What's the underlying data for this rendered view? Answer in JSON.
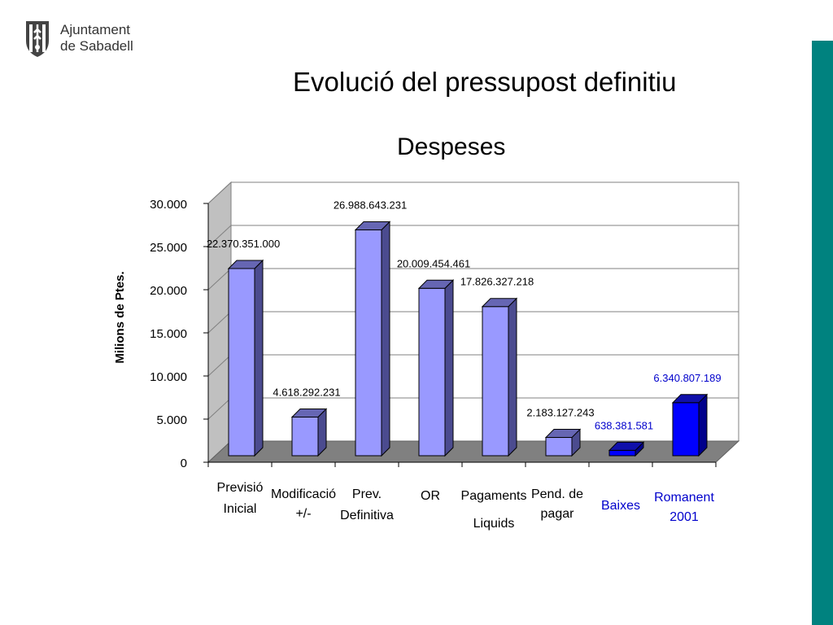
{
  "header": {
    "logo_line1": "Ajuntament",
    "logo_line2": "de Sabadell",
    "title": "Evolució del pressupost definitiu",
    "subtitle": "Despeses"
  },
  "colors": {
    "accent": "#00827F",
    "bar": "#9999FF",
    "bar_highlight": "#0000FF",
    "floor": "#808080",
    "side_wall": "#C0C0C0"
  },
  "icons": {
    "logo": "sabadell-coat-of-arms-icon"
  },
  "chart_data": {
    "type": "bar",
    "ylabel": "Milions de Ptes.",
    "ylim": [
      0,
      30000
    ],
    "yticks": [
      "0",
      "5.000",
      "10.000",
      "15.000",
      "20.000",
      "25.000",
      "30.000"
    ],
    "grid": true,
    "categories": [
      [
        "Previsió",
        "Inicial"
      ],
      [
        "Modificació",
        "+/-"
      ],
      [
        "Prev.",
        "Definitiva"
      ],
      [
        "OR"
      ],
      [
        "Pagaments",
        "Liquids"
      ],
      [
        "Pend. de",
        "pagar"
      ],
      [
        "Baixes"
      ],
      [
        "Romanent",
        "2001"
      ]
    ],
    "values": [
      22370.351,
      4618.292231,
      26988.643231,
      20009.454461,
      17826.327218,
      2183.127243,
      638.381581,
      6340.807189
    ],
    "data_labels": [
      "22.370.351.000",
      "4.618.292.231",
      "26.988.643.231",
      "20.009.454.461",
      "17.826.327.218",
      "2.183.127.243",
      "638.381.581",
      "6.340.807.189"
    ],
    "highlight": [
      false,
      false,
      false,
      false,
      false,
      false,
      true,
      true
    ]
  }
}
